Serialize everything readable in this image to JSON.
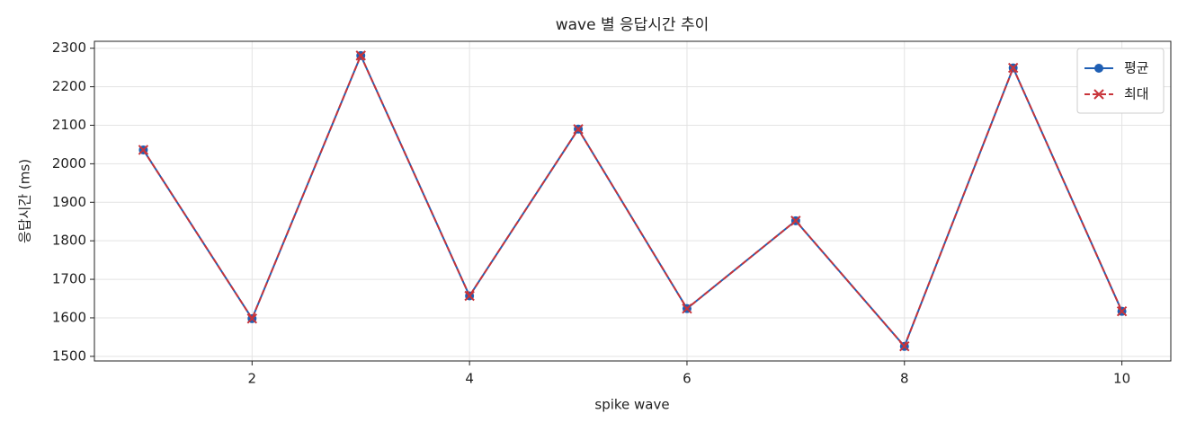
{
  "chart_data": {
    "type": "line",
    "title": "wave 별 응답시간 추이",
    "x_label": "spike wave",
    "y_label": "응답시간 (ms)",
    "x": [
      1,
      2,
      3,
      4,
      5,
      6,
      7,
      8,
      9,
      10
    ],
    "series": [
      {
        "name": "평균",
        "color": "#1f5fb4",
        "marker": "circle",
        "dash": "solid",
        "values": [
          2036,
          1598,
          2281,
          1657,
          2090,
          1624,
          1852,
          1526,
          2249,
          1617
        ]
      },
      {
        "name": "최대",
        "color": "#c8343a",
        "marker": "x",
        "dash": "dashed",
        "values": [
          2036,
          1598,
          2281,
          1657,
          2090,
          1624,
          1852,
          1526,
          2249,
          1617
        ]
      }
    ],
    "xlim": [
      0.55,
      10.45
    ],
    "xticks": [
      2,
      4,
      6,
      8,
      10
    ],
    "ylim": [
      1488,
      2318
    ],
    "yticks": [
      1500,
      1600,
      1700,
      1800,
      1900,
      2000,
      2100,
      2200,
      2300
    ],
    "grid": true,
    "legend": "upper right"
  }
}
